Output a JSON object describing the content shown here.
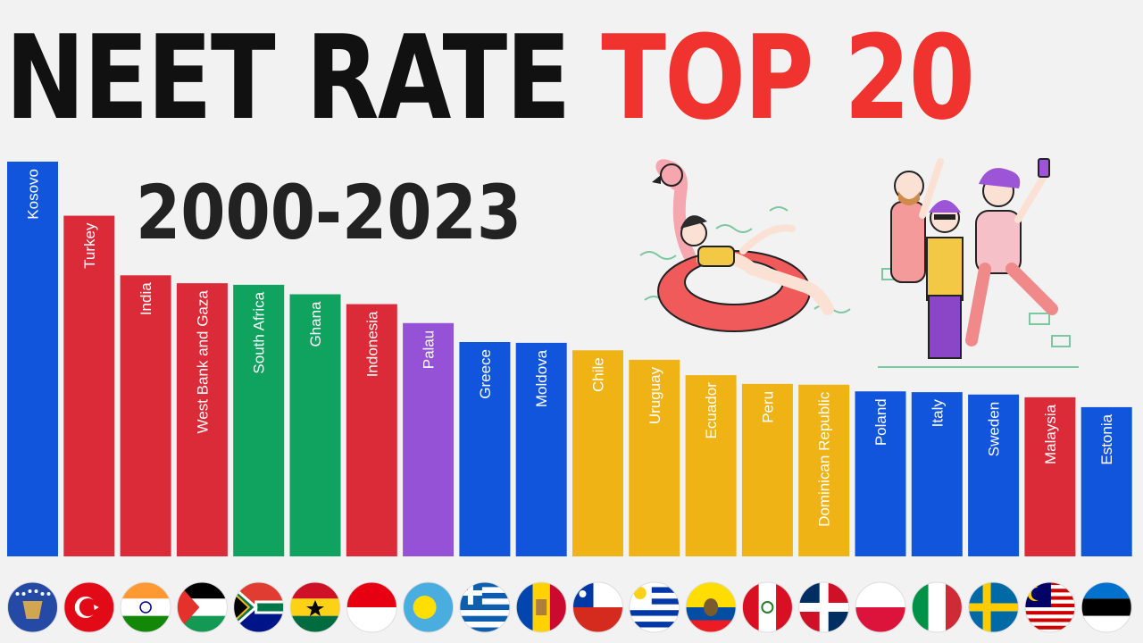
{
  "title": {
    "part1": "NEET RATE",
    "part2": "TOP 20"
  },
  "subtitle": "2000-2023",
  "colors": {
    "blue": "#1155dd",
    "red": "#dc2b38",
    "orange": "#f0b316",
    "green": "#0fa35f",
    "purple": "#9552d6",
    "title_red": "#f0332f",
    "title_black": "#111111",
    "background": "#f2f2f2"
  },
  "chart_data": {
    "type": "bar",
    "orientation": "vertical",
    "title": "NEET RATE TOP 20",
    "subtitle": "2000-2023",
    "xlabel": "",
    "ylabel": "",
    "grid": false,
    "legend": "none",
    "categories": [
      "Kosovo",
      "Turkey",
      "India",
      "West Bank and Gaza",
      "South Africa",
      "Ghana",
      "Indonesia",
      "Palau",
      "Greece",
      "Moldova",
      "Chile",
      "Uruguay",
      "Ecuador",
      "Peru",
      "Dominican Republic",
      "Poland",
      "Italy",
      "Sweden",
      "Malaysia",
      "Estonia"
    ],
    "values": [
      100,
      86.3,
      71.2,
      69.2,
      68.8,
      66.4,
      63.9,
      59.1,
      54.3,
      54.1,
      52.2,
      49.8,
      45.9,
      43.7,
      43.5,
      41.8,
      41.6,
      41.0,
      40.3,
      37.8
    ],
    "bar_colors": [
      "blue",
      "red",
      "red",
      "red",
      "green",
      "green",
      "red",
      "purple",
      "blue",
      "blue",
      "orange",
      "orange",
      "orange",
      "orange",
      "orange",
      "blue",
      "blue",
      "blue",
      "red",
      "blue"
    ],
    "flags": [
      "kosovo-flag-icon",
      "turkey-flag-icon",
      "india-flag-icon",
      "palestine-flag-icon",
      "south-africa-flag-icon",
      "ghana-flag-icon",
      "indonesia-flag-icon",
      "palau-flag-icon",
      "greece-flag-icon",
      "moldova-flag-icon",
      "chile-flag-icon",
      "uruguay-flag-icon",
      "ecuador-flag-icon",
      "peru-flag-icon",
      "dominican-republic-flag-icon",
      "poland-flag-icon",
      "italy-flag-icon",
      "sweden-flag-icon",
      "malaysia-flag-icon",
      "estonia-flag-icon"
    ],
    "value_note": "bar heights relative to largest bar (Kosovo = 100); no axis values printed"
  },
  "illustrations": [
    "woman-on-flamingo-float-illustration",
    "friends-celebrating-illustration"
  ]
}
